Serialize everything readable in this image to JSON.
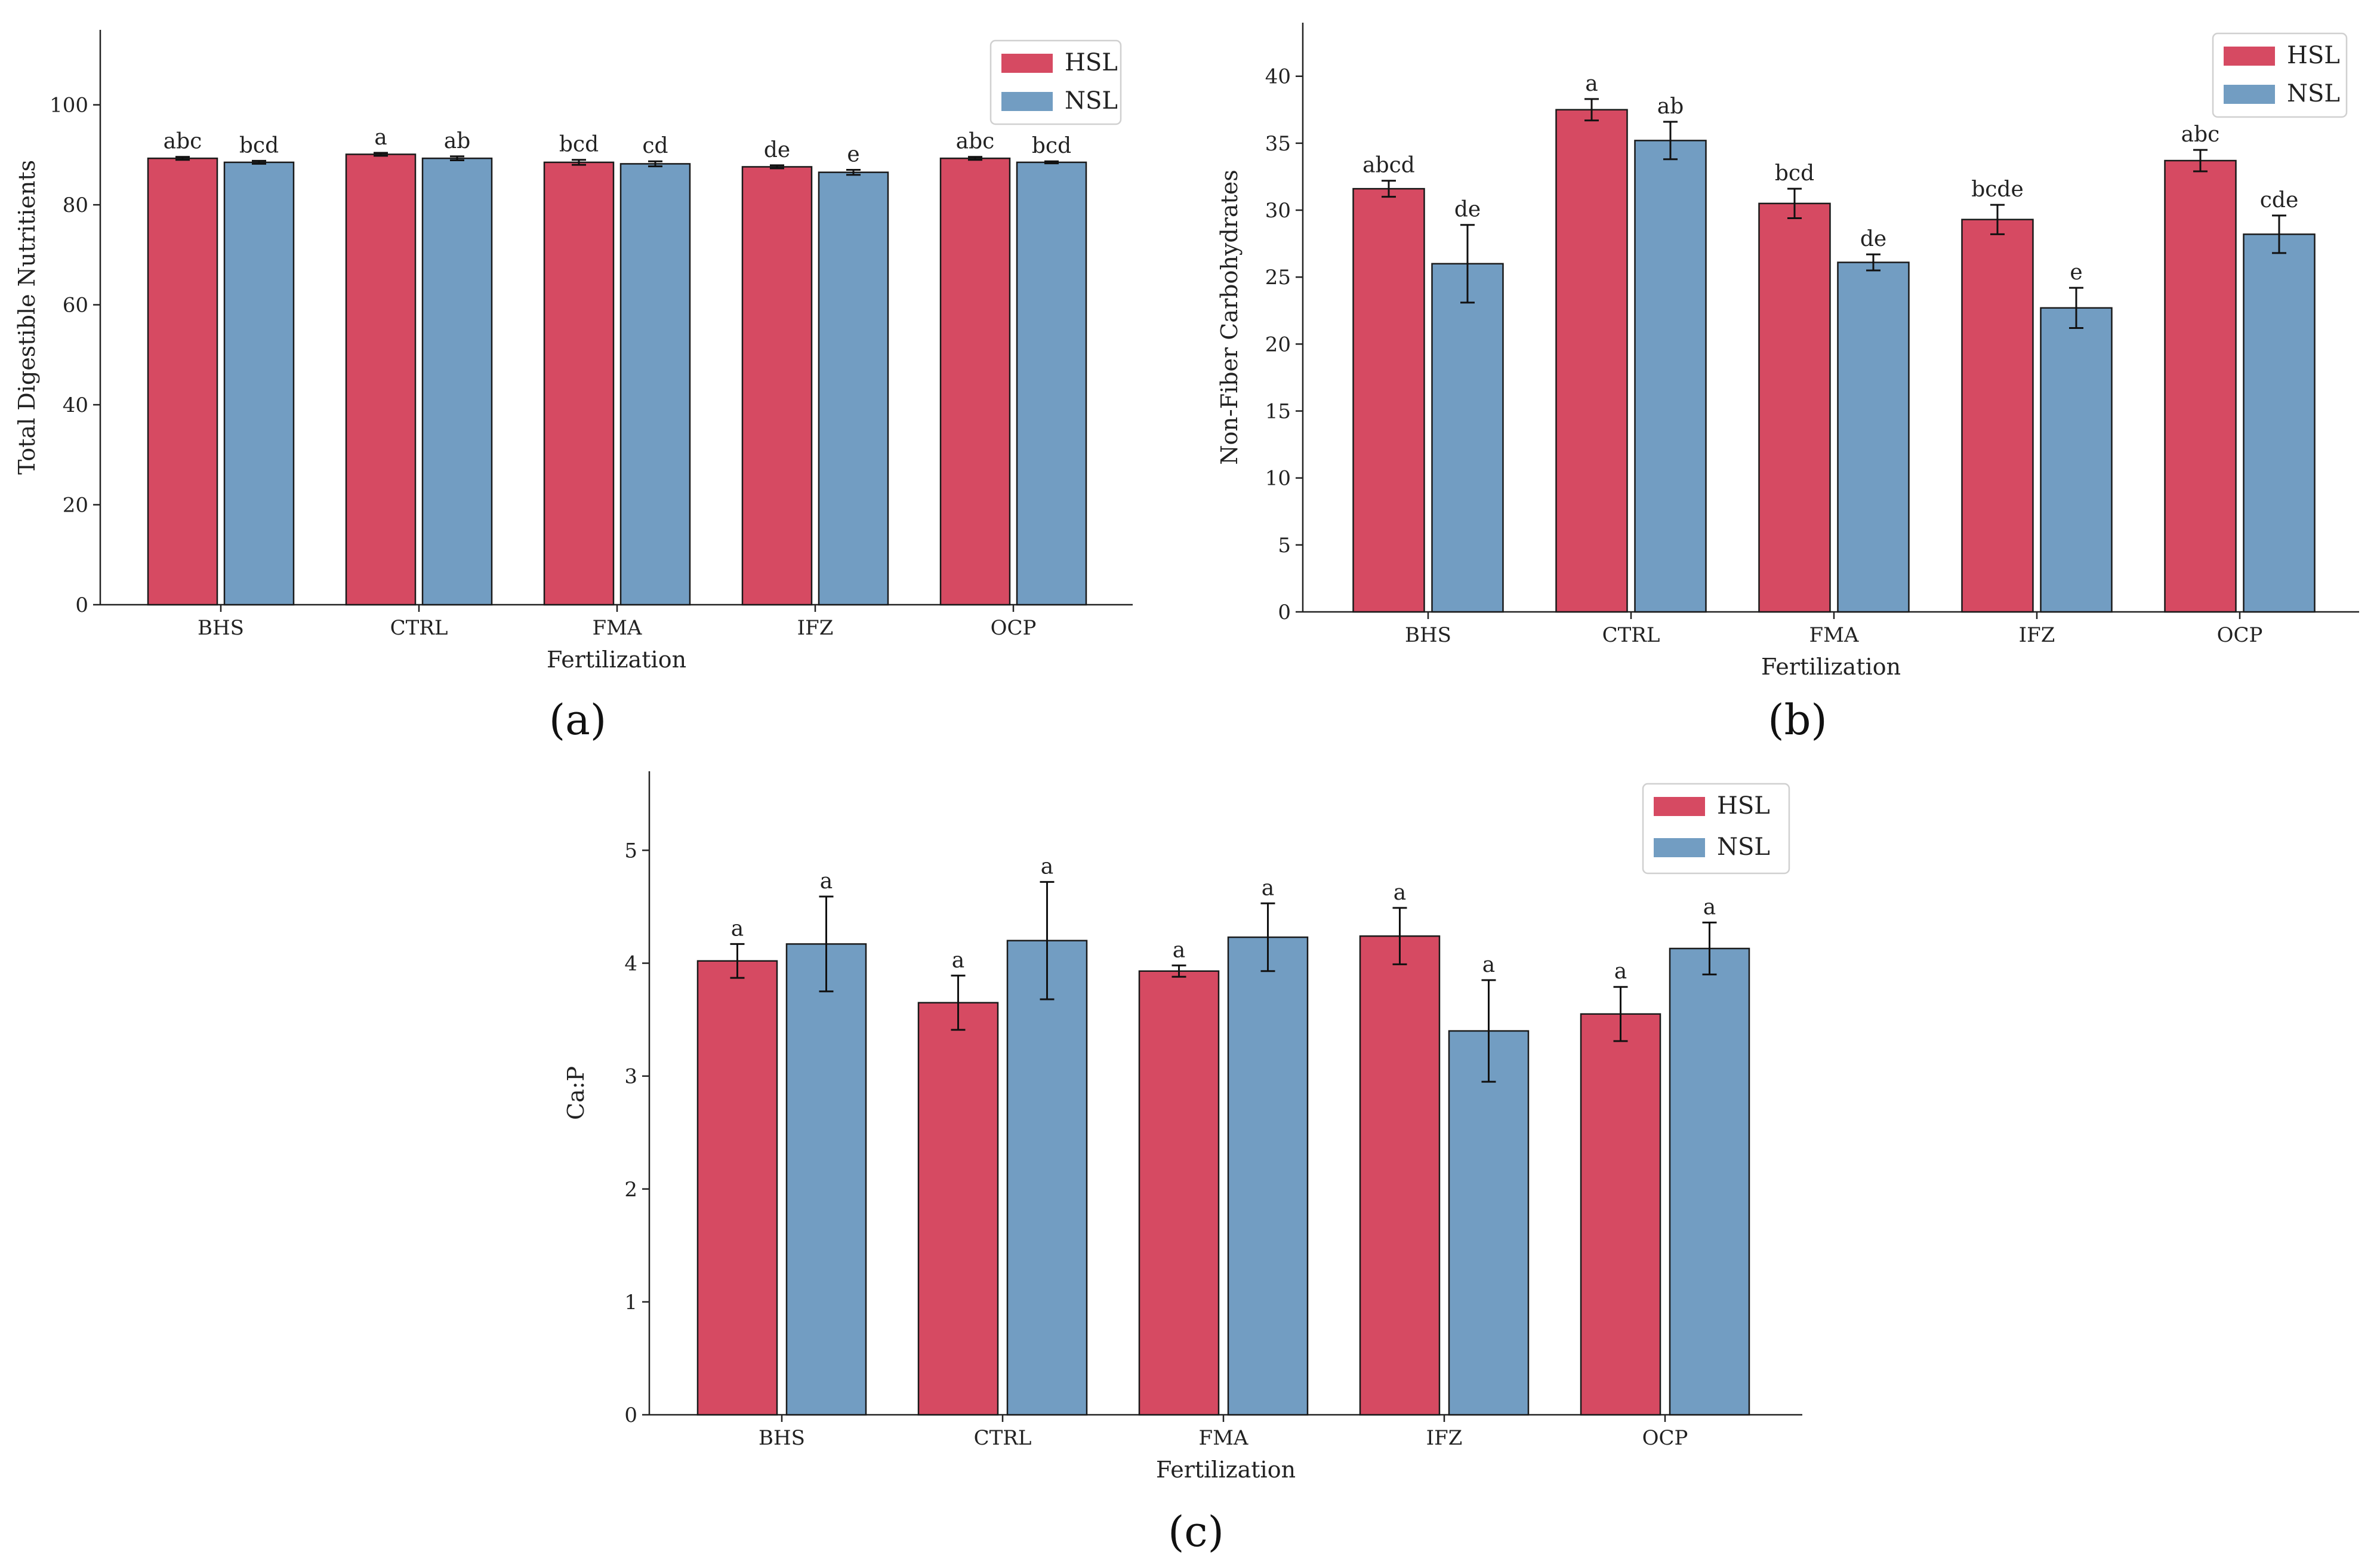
{
  "colors": {
    "HSL": "#d64a62",
    "NSL": "#729dc2",
    "edge": "#1a1a1a",
    "error": "#111111"
  },
  "chart_data": [
    {
      "id": "a",
      "panel_label": "(a)",
      "type": "bar",
      "categories": [
        "BHS",
        "CTRL",
        "FMA",
        "IFZ",
        "OCP"
      ],
      "series": [
        {
          "name": "HSL",
          "values": [
            89.3,
            90.1,
            88.5,
            87.6,
            89.3
          ],
          "errors": [
            0.3,
            0.3,
            0.5,
            0.3,
            0.3
          ],
          "letters": [
            "abc",
            "a",
            "bcd",
            "de",
            "abc"
          ]
        },
        {
          "name": "NSL",
          "values": [
            88.5,
            89.3,
            88.2,
            86.5,
            88.5
          ],
          "errors": [
            0.3,
            0.4,
            0.5,
            0.5,
            0.2
          ],
          "letters": [
            "bcd",
            "ab",
            "cd",
            "e",
            "bcd"
          ]
        }
      ],
      "xlabel": "Fertilization",
      "ylabel": "Total Digestible Nutritients",
      "ylim": [
        0,
        115
      ],
      "yticks": [
        0,
        20,
        40,
        60,
        80,
        100
      ],
      "legend": "top-right"
    },
    {
      "id": "b",
      "panel_label": "(b)",
      "type": "bar",
      "categories": [
        "BHS",
        "CTRL",
        "FMA",
        "IFZ",
        "OCP"
      ],
      "series": [
        {
          "name": "HSL",
          "values": [
            31.6,
            37.5,
            30.5,
            29.3,
            33.7
          ],
          "errors": [
            0.6,
            0.8,
            1.1,
            1.1,
            0.8
          ],
          "letters": [
            "abcd",
            "a",
            "bcd",
            "bcde",
            "abc"
          ]
        },
        {
          "name": "NSL",
          "values": [
            26.0,
            35.2,
            26.1,
            22.7,
            28.2
          ],
          "errors": [
            2.9,
            1.4,
            0.6,
            1.5,
            1.4
          ],
          "letters": [
            "de",
            "ab",
            "de",
            "e",
            "cde"
          ]
        }
      ],
      "xlabel": "Fertilization",
      "ylabel": "Non-Fiber Carbohydrates",
      "ylim": [
        0,
        44
      ],
      "yticks": [
        0,
        5,
        10,
        15,
        20,
        25,
        30,
        35,
        40
      ],
      "legend": "top-right"
    },
    {
      "id": "c",
      "panel_label": "(c)",
      "type": "bar",
      "categories": [
        "BHS",
        "CTRL",
        "FMA",
        "IFZ",
        "OCP"
      ],
      "series": [
        {
          "name": "HSL",
          "values": [
            4.02,
            3.65,
            3.93,
            4.24,
            3.55
          ],
          "errors": [
            0.15,
            0.24,
            0.05,
            0.25,
            0.24
          ],
          "letters": [
            "a",
            "a",
            "a",
            "a",
            "a"
          ]
        },
        {
          "name": "NSL",
          "values": [
            4.17,
            4.2,
            4.23,
            3.4,
            4.13
          ],
          "errors": [
            0.42,
            0.52,
            0.3,
            0.45,
            0.23
          ],
          "letters": [
            "a",
            "a",
            "a",
            "a",
            "a"
          ]
        }
      ],
      "xlabel": "Fertilization",
      "ylabel": "Ca:P",
      "ylim": [
        0,
        5.7
      ],
      "yticks": [
        0,
        1,
        2,
        3,
        4,
        5
      ],
      "legend": "top-right"
    }
  ]
}
